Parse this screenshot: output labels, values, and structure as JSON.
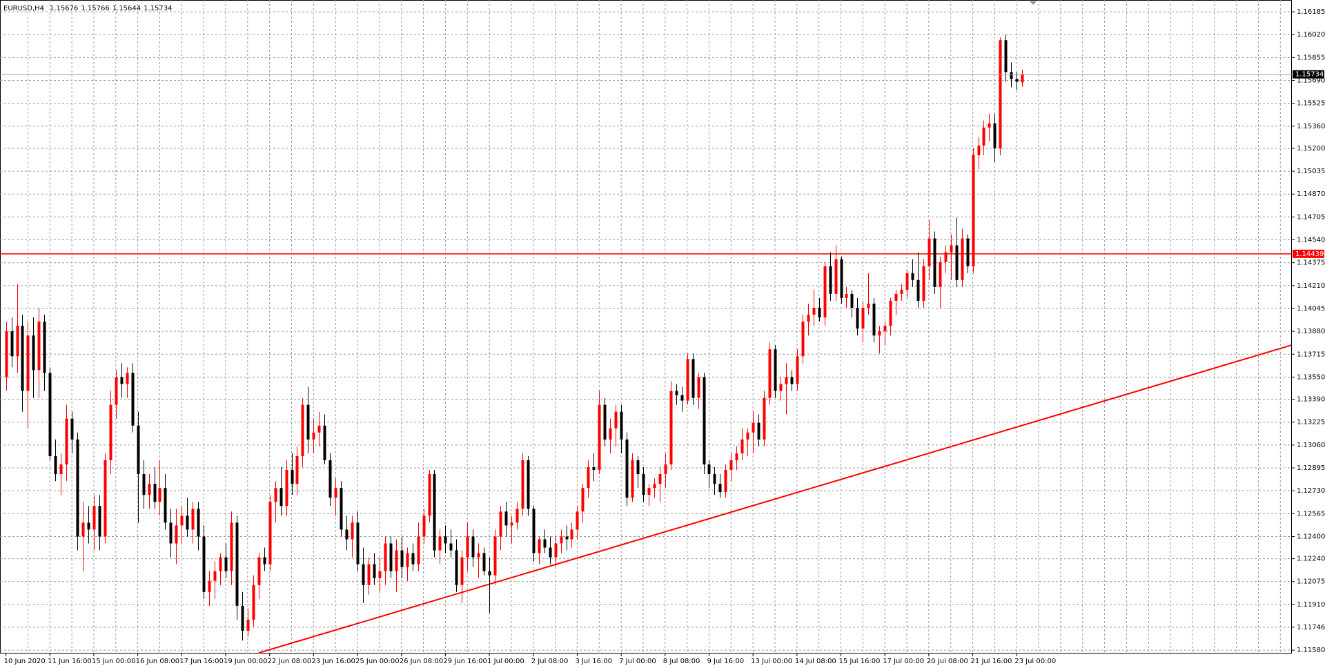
{
  "chart_data": {
    "type": "candlestick",
    "symbol": "EURUSD,H4",
    "bull_color": "#ff0000",
    "bear_color": "#000000",
    "grid": true,
    "ylim": [
      1.11556,
      1.1627
    ],
    "yticks": [
      1.16185,
      {
        "value": 1.1602,
        "label": "1.16020"
      },
      1.15855,
      {
        "value": 1.1569,
        "label": "1.15690"
      },
      1.15525,
      {
        "value": 1.1536,
        "label": "1.15360"
      },
      {
        "value": 1.152,
        "label": "1.15200"
      },
      1.15035,
      {
        "value": 1.1487,
        "label": "1.14870"
      },
      1.14705,
      {
        "value": 1.1454,
        "label": "1.14540"
      },
      1.14375,
      {
        "value": 1.1421,
        "label": "1.14210"
      },
      1.14045,
      {
        "value": 1.1388,
        "label": "1.13880"
      },
      1.13715,
      {
        "value": 1.1355,
        "label": "1.13550"
      },
      {
        "value": 1.1339,
        "label": "1.13390"
      },
      1.13225,
      {
        "value": 1.1306,
        "label": "1.13060"
      },
      1.12895,
      {
        "value": 1.1273,
        "label": "1.12730"
      },
      1.12565,
      {
        "value": 1.124,
        "label": "1.12400"
      },
      {
        "value": 1.1224,
        "label": "1.12240"
      },
      1.12075,
      {
        "value": 1.1191,
        "label": "1.11910"
      },
      1.11746,
      {
        "value": 1.1158,
        "label": "1.11580"
      }
    ],
    "hline": {
      "value": 1.14439,
      "color": "#ff0000"
    },
    "trend_line": {
      "x": [
        46,
        234
      ],
      "y": [
        1.1156,
        1.1378
      ],
      "color": "#ff0000"
    },
    "categories": [
      "10 Jun 2020",
      null,
      null,
      null,
      null,
      null,
      null,
      null,
      "11 Jun 16:00",
      null,
      null,
      null,
      null,
      null,
      null,
      null,
      "15 Jun 00:00",
      null,
      null,
      null,
      null,
      null,
      null,
      null,
      "16 Jun 08:00",
      null,
      null,
      null,
      null,
      null,
      null,
      null,
      "17 Jun 16:00",
      null,
      null,
      null,
      null,
      null,
      null,
      null,
      "19 Jun 00:00",
      null,
      null,
      null,
      null,
      null,
      null,
      null,
      "22 Jun 08:00",
      null,
      null,
      null,
      null,
      null,
      null,
      null,
      "23 Jun 16:00",
      null,
      null,
      null,
      null,
      null,
      null,
      null,
      "25 Jun 00:00",
      null,
      null,
      null,
      null,
      null,
      null,
      null,
      "26 Jun 08:00",
      null,
      null,
      null,
      null,
      null,
      null,
      null,
      "29 Jun 16:00",
      null,
      null,
      null,
      null,
      null,
      null,
      null,
      "1 Jul 00:00",
      null,
      null,
      null,
      null,
      null,
      null,
      null,
      "2 Jul 08:00",
      null,
      null,
      null,
      null,
      null,
      null,
      null,
      "3 Jul 16:00",
      null,
      null,
      null,
      null,
      null,
      null,
      null,
      "7 Jul 00:00",
      null,
      null,
      null,
      null,
      null,
      null,
      null,
      "8 Jul 08:00",
      null,
      null,
      null,
      null,
      null,
      null,
      null,
      "9 Jul 16:00",
      null,
      null,
      null,
      null,
      null,
      null,
      null,
      "13 Jul 00:00",
      null,
      null,
      null,
      null,
      null,
      null,
      null,
      "14 Jul 08:00",
      null,
      null,
      null,
      null,
      null,
      null,
      null,
      "15 Jul 16:00",
      null,
      null,
      null,
      null,
      null,
      null,
      null,
      "17 Jul 00:00",
      null,
      null,
      null,
      null,
      null,
      null,
      null,
      "20 Jul 08:00",
      null,
      null,
      null,
      null,
      null,
      null,
      null,
      "21 Jul 16:00",
      null,
      null,
      null,
      null,
      null,
      null,
      null,
      "23 Jul 00:00",
      null
    ],
    "ohlc": [
      [
        1.1355,
        1.1395,
        1.1345,
        1.1388
      ],
      [
        1.1388,
        1.1398,
        1.1362,
        1.137
      ],
      [
        1.137,
        1.1422,
        1.1358,
        1.1392
      ],
      [
        1.1392,
        1.14,
        1.133,
        1.1345
      ],
      [
        1.1345,
        1.1395,
        1.1318,
        1.1385
      ],
      [
        1.1385,
        1.1398,
        1.134,
        1.136
      ],
      [
        1.136,
        1.1405,
        1.134,
        1.1395
      ],
      [
        1.1395,
        1.14,
        1.1345,
        1.1358
      ],
      [
        1.1358,
        1.1362,
        1.1295,
        1.1298
      ],
      [
        1.1298,
        1.131,
        1.128,
        1.1285
      ],
      [
        1.1285,
        1.13,
        1.127,
        1.1292
      ],
      [
        1.1292,
        1.1335,
        1.128,
        1.1325
      ],
      [
        1.1325,
        1.133,
        1.13,
        1.131
      ],
      [
        1.131,
        1.1315,
        1.123,
        1.124
      ],
      [
        1.124,
        1.1265,
        1.1215,
        1.125
      ],
      [
        1.125,
        1.1262,
        1.1235,
        1.1245
      ],
      [
        1.1245,
        1.127,
        1.123,
        1.1262
      ],
      [
        1.1262,
        1.127,
        1.123,
        1.124
      ],
      [
        1.124,
        1.13,
        1.1235,
        1.1295
      ],
      [
        1.1295,
        1.1345,
        1.1285,
        1.1335
      ],
      [
        1.1335,
        1.136,
        1.1325,
        1.1355
      ],
      [
        1.1355,
        1.1365,
        1.134,
        1.135
      ],
      [
        1.135,
        1.1362,
        1.134,
        1.1358
      ],
      [
        1.1358,
        1.1365,
        1.1315,
        1.132
      ],
      [
        1.132,
        1.133,
        1.125,
        1.1285
      ],
      [
        1.1285,
        1.1295,
        1.126,
        1.127
      ],
      [
        1.127,
        1.1285,
        1.126,
        1.1278
      ],
      [
        1.1278,
        1.129,
        1.126,
        1.1265
      ],
      [
        1.1265,
        1.1295,
        1.1255,
        1.1275
      ],
      [
        1.1275,
        1.1285,
        1.1245,
        1.125
      ],
      [
        1.125,
        1.126,
        1.1225,
        1.1235
      ],
      [
        1.1235,
        1.126,
        1.122,
        1.1248
      ],
      [
        1.1248,
        1.1262,
        1.1235,
        1.1255
      ],
      [
        1.1255,
        1.1268,
        1.124,
        1.1245
      ],
      [
        1.1245,
        1.1265,
        1.1235,
        1.126
      ],
      [
        1.126,
        1.1265,
        1.123,
        1.124
      ],
      [
        1.124,
        1.1248,
        1.1195,
        1.12
      ],
      [
        1.12,
        1.1215,
        1.119,
        1.1208
      ],
      [
        1.1208,
        1.1222,
        1.1195,
        1.1215
      ],
      [
        1.1215,
        1.1228,
        1.1205,
        1.1225
      ],
      [
        1.1225,
        1.1235,
        1.121,
        1.1215
      ],
      [
        1.1215,
        1.1258,
        1.1205,
        1.125
      ],
      [
        1.125,
        1.1255,
        1.118,
        1.119
      ],
      [
        1.119,
        1.12,
        1.1165,
        1.1172
      ],
      [
        1.1172,
        1.1188,
        1.1168,
        1.118
      ],
      [
        1.118,
        1.1212,
        1.1175,
        1.1205
      ],
      [
        1.1205,
        1.1228,
        1.1195,
        1.1225
      ],
      [
        1.1225,
        1.1232,
        1.1215,
        1.122
      ],
      [
        1.122,
        1.127,
        1.1215,
        1.1265
      ],
      [
        1.1265,
        1.128,
        1.125,
        1.1275
      ],
      [
        1.1275,
        1.129,
        1.1255,
        1.1262
      ],
      [
        1.1262,
        1.1295,
        1.1255,
        1.1288
      ],
      [
        1.1288,
        1.13,
        1.127,
        1.1278
      ],
      [
        1.1278,
        1.1305,
        1.127,
        1.1298
      ],
      [
        1.1298,
        1.134,
        1.129,
        1.1335
      ],
      [
        1.1335,
        1.1348,
        1.13,
        1.131
      ],
      [
        1.131,
        1.1325,
        1.13,
        1.1315
      ],
      [
        1.1315,
        1.133,
        1.1305,
        1.132
      ],
      [
        1.132,
        1.1328,
        1.1292,
        1.1295
      ],
      [
        1.1295,
        1.13,
        1.1262,
        1.1268
      ],
      [
        1.1268,
        1.1282,
        1.1255,
        1.1275
      ],
      [
        1.1275,
        1.128,
        1.124,
        1.1245
      ],
      [
        1.1245,
        1.1255,
        1.123,
        1.1238
      ],
      [
        1.1238,
        1.1255,
        1.1225,
        1.125
      ],
      [
        1.125,
        1.1258,
        1.1215,
        1.122
      ],
      [
        1.122,
        1.1232,
        1.1192,
        1.1205
      ],
      [
        1.1205,
        1.1225,
        1.1198,
        1.122
      ],
      [
        1.122,
        1.1228,
        1.1205,
        1.121
      ],
      [
        1.121,
        1.1225,
        1.12,
        1.1215
      ],
      [
        1.1215,
        1.124,
        1.1205,
        1.1235
      ],
      [
        1.1235,
        1.124,
        1.121,
        1.1215
      ],
      [
        1.1215,
        1.1238,
        1.12,
        1.123
      ],
      [
        1.123,
        1.124,
        1.121,
        1.1218
      ],
      [
        1.1218,
        1.1232,
        1.1208,
        1.1228
      ],
      [
        1.1228,
        1.1235,
        1.1215,
        1.122
      ],
      [
        1.122,
        1.125,
        1.1215,
        1.124
      ],
      [
        1.124,
        1.126,
        1.1235,
        1.1255
      ],
      [
        1.1255,
        1.1288,
        1.125,
        1.1285
      ],
      [
        1.1285,
        1.1288,
        1.1225,
        1.123
      ],
      [
        1.123,
        1.1245,
        1.122,
        1.124
      ],
      [
        1.124,
        1.1248,
        1.1228,
        1.1235
      ],
      [
        1.1235,
        1.1245,
        1.1225,
        1.123
      ],
      [
        1.123,
        1.1238,
        1.12,
        1.1205
      ],
      [
        1.1205,
        1.123,
        1.1192,
        1.1225
      ],
      [
        1.1225,
        1.125,
        1.1215,
        1.124
      ],
      [
        1.124,
        1.1245,
        1.1218,
        1.1225
      ],
      [
        1.1225,
        1.1235,
        1.121,
        1.1228
      ],
      [
        1.1228,
        1.1232,
        1.1212,
        1.1215
      ],
      [
        1.1215,
        1.1225,
        1.1185,
        1.1212
      ],
      [
        1.1212,
        1.1245,
        1.1205,
        1.124
      ],
      [
        1.124,
        1.1262,
        1.123,
        1.1258
      ],
      [
        1.1258,
        1.1265,
        1.124,
        1.1248
      ],
      [
        1.1248,
        1.1255,
        1.1235,
        1.125
      ],
      [
        1.125,
        1.1265,
        1.1245,
        1.126
      ],
      [
        1.126,
        1.13,
        1.1255,
        1.1295
      ],
      [
        1.1295,
        1.1298,
        1.1255,
        1.126
      ],
      [
        1.126,
        1.1262,
        1.1222,
        1.1228
      ],
      [
        1.1228,
        1.124,
        1.122,
        1.1238
      ],
      [
        1.1238,
        1.1245,
        1.1228,
        1.1232
      ],
      [
        1.1232,
        1.124,
        1.122,
        1.1225
      ],
      [
        1.1225,
        1.124,
        1.1218,
        1.1235
      ],
      [
        1.1235,
        1.1245,
        1.1228,
        1.124
      ],
      [
        1.124,
        1.1248,
        1.123,
        1.1238
      ],
      [
        1.1238,
        1.125,
        1.1232,
        1.1245
      ],
      [
        1.1245,
        1.1262,
        1.1238,
        1.1258
      ],
      [
        1.1258,
        1.1278,
        1.125,
        1.1275
      ],
      [
        1.1275,
        1.1295,
        1.1268,
        1.129
      ],
      [
        1.129,
        1.13,
        1.128,
        1.1288
      ],
      [
        1.1288,
        1.1345,
        1.1285,
        1.1335
      ],
      [
        1.1335,
        1.134,
        1.1305,
        1.131
      ],
      [
        1.131,
        1.1325,
        1.13,
        1.1318
      ],
      [
        1.1318,
        1.1335,
        1.1305,
        1.133
      ],
      [
        1.133,
        1.1335,
        1.13,
        1.131
      ],
      [
        1.131,
        1.1315,
        1.1262,
        1.1268
      ],
      [
        1.1268,
        1.13,
        1.1265,
        1.1295
      ],
      [
        1.1295,
        1.1298,
        1.1275,
        1.1285
      ],
      [
        1.1285,
        1.129,
        1.1265,
        1.127
      ],
      [
        1.127,
        1.1278,
        1.1262,
        1.1275
      ],
      [
        1.1275,
        1.1282,
        1.1268,
        1.1278
      ],
      [
        1.1278,
        1.129,
        1.1265,
        1.1285
      ],
      [
        1.1285,
        1.13,
        1.1275,
        1.1292
      ],
      [
        1.1292,
        1.1352,
        1.1288,
        1.1345
      ],
      [
        1.1345,
        1.135,
        1.1335,
        1.1342
      ],
      [
        1.1342,
        1.1348,
        1.133,
        1.1338
      ],
      [
        1.1338,
        1.1372,
        1.1335,
        1.1368
      ],
      [
        1.1368,
        1.1372,
        1.1335,
        1.134
      ],
      [
        1.134,
        1.1358,
        1.1332,
        1.1355
      ],
      [
        1.1355,
        1.1358,
        1.1285,
        1.1292
      ],
      [
        1.1292,
        1.1295,
        1.1275,
        1.1285
      ],
      [
        1.1285,
        1.129,
        1.127,
        1.1278
      ],
      [
        1.1278,
        1.1285,
        1.1268,
        1.1272
      ],
      [
        1.1272,
        1.1292,
        1.1268,
        1.1288
      ],
      [
        1.1288,
        1.13,
        1.128,
        1.1295
      ],
      [
        1.1295,
        1.1305,
        1.1288,
        1.13
      ],
      [
        1.13,
        1.1318,
        1.1295,
        1.131
      ],
      [
        1.131,
        1.1318,
        1.1298,
        1.1315
      ],
      [
        1.1315,
        1.133,
        1.13,
        1.1322
      ],
      [
        1.1322,
        1.1328,
        1.1305,
        1.131
      ],
      [
        1.131,
        1.1345,
        1.1305,
        1.134
      ],
      [
        1.134,
        1.138,
        1.1335,
        1.1375
      ],
      [
        1.1375,
        1.1378,
        1.134,
        1.1345
      ],
      [
        1.1345,
        1.1355,
        1.1338,
        1.135
      ],
      [
        1.135,
        1.1365,
        1.1328,
        1.1355
      ],
      [
        1.1355,
        1.136,
        1.1345,
        1.135
      ],
      [
        1.135,
        1.1375,
        1.1345,
        1.137
      ],
      [
        1.137,
        1.14,
        1.1365,
        1.1395
      ],
      [
        1.1395,
        1.1408,
        1.1385,
        1.14
      ],
      [
        1.14,
        1.1418,
        1.1392,
        1.1405
      ],
      [
        1.1405,
        1.1412,
        1.1395,
        1.1398
      ],
      [
        1.1398,
        1.1438,
        1.1392,
        1.1435
      ],
      [
        1.1435,
        1.1445,
        1.141,
        1.1415
      ],
      [
        1.1415,
        1.145,
        1.141,
        1.144
      ],
      [
        1.144,
        1.1442,
        1.1408,
        1.1412
      ],
      [
        1.1412,
        1.142,
        1.1405,
        1.1415
      ],
      [
        1.1415,
        1.1418,
        1.1398,
        1.1405
      ],
      [
        1.1405,
        1.1412,
        1.1385,
        1.139
      ],
      [
        1.139,
        1.141,
        1.138,
        1.1405
      ],
      [
        1.1405,
        1.143,
        1.14,
        1.1408
      ],
      [
        1.1408,
        1.1412,
        1.138,
        1.1385
      ],
      [
        1.1385,
        1.1392,
        1.1372,
        1.1388
      ],
      [
        1.1388,
        1.1395,
        1.1378,
        1.1392
      ],
      [
        1.1392,
        1.1412,
        1.1385,
        1.141
      ],
      [
        1.141,
        1.1418,
        1.14,
        1.1415
      ],
      [
        1.1415,
        1.1422,
        1.141,
        1.1418
      ],
      [
        1.1418,
        1.1432,
        1.1412,
        1.143
      ],
      [
        1.143,
        1.144,
        1.142,
        1.1425
      ],
      [
        1.1425,
        1.1445,
        1.1405,
        1.141
      ],
      [
        1.141,
        1.144,
        1.1405,
        1.1435
      ],
      [
        1.1435,
        1.1468,
        1.1425,
        1.1455
      ],
      [
        1.1455,
        1.146,
        1.1415,
        1.142
      ],
      [
        1.142,
        1.1442,
        1.1405,
        1.1438
      ],
      [
        1.1438,
        1.145,
        1.143,
        1.1445
      ],
      [
        1.1445,
        1.1458,
        1.1425,
        1.145
      ],
      [
        1.145,
        1.147,
        1.142,
        1.1425
      ],
      [
        1.1425,
        1.1462,
        1.142,
        1.1455
      ],
      [
        1.1455,
        1.1458,
        1.143,
        1.1435
      ],
      [
        1.1435,
        1.152,
        1.143,
        1.1515
      ],
      [
        1.1515,
        1.1528,
        1.1505,
        1.1522
      ],
      [
        1.1522,
        1.154,
        1.1515,
        1.1535
      ],
      [
        1.1535,
        1.1545,
        1.1525,
        1.1538
      ],
      [
        1.1538,
        1.1545,
        1.151,
        1.152
      ],
      [
        1.152,
        1.16,
        1.1515,
        1.1598
      ],
      [
        1.1598,
        1.1602,
        1.1568,
        1.1575
      ],
      [
        1.1575,
        1.1582,
        1.1564,
        1.157
      ],
      [
        1.157,
        1.1575,
        1.1562,
        1.1568
      ],
      [
        1.15676,
        1.15766,
        1.15644,
        1.15734
      ]
    ]
  }
}
